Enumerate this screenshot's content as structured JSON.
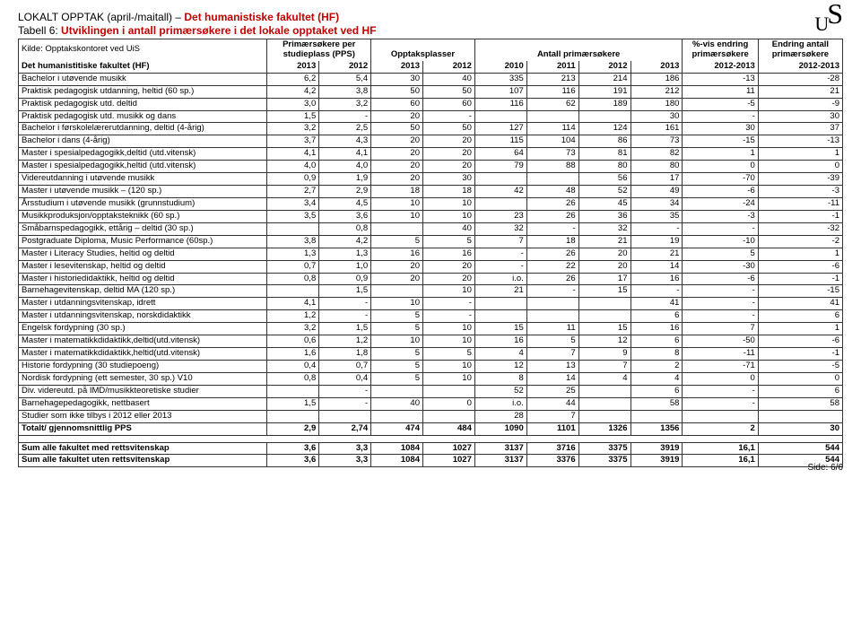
{
  "header": {
    "line1_pre": "LOKALT OPPTAK (april-/maitall) – ",
    "line1_red": "Det humanistiske fakultet (HF)",
    "line2_pre": "Tabell 6: ",
    "line2_red": "Utviklingen i antall primærsøkere i det lokale opptaket ved HF",
    "source": "Kilde: Opptakskontoret ved UiS"
  },
  "columns": {
    "pps": "Primærsøkere per studieplass (PPS)",
    "plasser": "Opptaksplasser",
    "antall": "Antall primærsøkere",
    "pct": "%-vis endring primærsøkere",
    "endring": "Endring antall primærsøkere",
    "fac": "Det humanistitiske fakultet (HF)",
    "y2013": "2013",
    "y2012": "2012",
    "y2011": "2011",
    "y2010": "2010",
    "p1": "2012-2013",
    "p2": "2012-2013"
  },
  "rows": [
    {
      "n": "Bachelor i utøvende musikk",
      "v": [
        "6,2",
        "5,4",
        "30",
        "40",
        "335",
        "213",
        "214",
        "186",
        "-13",
        "-28"
      ]
    },
    {
      "n": "Praktisk pedagogisk utdanning, heltid (60 sp.)",
      "v": [
        "4,2",
        "3,8",
        "50",
        "50",
        "107",
        "116",
        "191",
        "212",
        "11",
        "21"
      ]
    },
    {
      "n": "Praktisk pedagogisk utd. deltid",
      "v": [
        "3,0",
        "3,2",
        "60",
        "60",
        "116",
        "62",
        "189",
        "180",
        "-5",
        "-9"
      ]
    },
    {
      "n": "Praktisk pedagogisk utd. musikk og dans",
      "v": [
        "1,5",
        "-",
        "20",
        "-",
        "",
        "",
        "",
        "30",
        "-",
        "30"
      ]
    },
    {
      "n": "Bachelor i førskolelærerutdanning, deltid (4-årig)",
      "v": [
        "3,2",
        "2,5",
        "50",
        "50",
        "127",
        "114",
        "124",
        "161",
        "30",
        "37"
      ]
    },
    {
      "n": "Bachelor i dans (4-årig)",
      "v": [
        "3,7",
        "4,3",
        "20",
        "20",
        "115",
        "104",
        "86",
        "73",
        "-15",
        "-13"
      ]
    },
    {
      "n": "Master i spesialpedagogikk,deltid (utd.vitensk)",
      "v": [
        "4,1",
        "4,1",
        "20",
        "20",
        "64",
        "73",
        "81",
        "82",
        "1",
        "1"
      ]
    },
    {
      "n": "Master i spesialpedagogikk,heltid (utd.vitensk)",
      "v": [
        "4,0",
        "4,0",
        "20",
        "20",
        "79",
        "88",
        "80",
        "80",
        "0",
        "0"
      ]
    },
    {
      "n": "Videreutdanning i utøvende musikk",
      "v": [
        "0,9",
        "1,9",
        "20",
        "30",
        "",
        "",
        "56",
        "17",
        "-70",
        "-39"
      ]
    },
    {
      "n": "Master i utøvende musikk – (120 sp.)",
      "v": [
        "2,7",
        "2,9",
        "18",
        "18",
        "42",
        "48",
        "52",
        "49",
        "-6",
        "-3"
      ]
    },
    {
      "n": "Årsstudium i utøvende musikk (grunnstudium)",
      "v": [
        "3,4",
        "4,5",
        "10",
        "10",
        "",
        "26",
        "45",
        "34",
        "-24",
        "-11"
      ]
    },
    {
      "n": "Musikkproduksjon/opptaksteknikk (60 sp.)",
      "v": [
        "3,5",
        "3,6",
        "10",
        "10",
        "23",
        "26",
        "36",
        "35",
        "-3",
        "-1"
      ]
    },
    {
      "n": "Småbarnspedagogikk, ettårig – deltid (30 sp.)",
      "v": [
        "",
        "0,8",
        "",
        "40",
        "32",
        "-",
        "32",
        "-",
        "-",
        "-32"
      ]
    },
    {
      "n": "Postgraduate Diploma, Music Performance (60sp.)",
      "v": [
        "3,8",
        "4,2",
        "5",
        "5",
        "7",
        "18",
        "21",
        "19",
        "-10",
        "-2"
      ]
    },
    {
      "n": "Master i Literacy Studies, heltid og deltid",
      "v": [
        "1,3",
        "1,3",
        "16",
        "16",
        "-",
        "26",
        "20",
        "21",
        "5",
        "1"
      ]
    },
    {
      "n": "Master i lesevitenskap, heltid og deltid",
      "v": [
        "0,7",
        "1,0",
        "20",
        "20",
        "-",
        "22",
        "20",
        "14",
        "-30",
        "-6"
      ]
    },
    {
      "n": "Master i historiedidaktikk, heltid og deltid",
      "v": [
        "0,8",
        "0,9",
        "20",
        "20",
        "i.o.",
        "26",
        "17",
        "16",
        "-6",
        "-1"
      ]
    },
    {
      "n": "Barnehagevitenskap, deltid MA (120 sp.)",
      "v": [
        "",
        "1,5",
        "",
        "10",
        "21",
        "-",
        "15",
        "-",
        "-",
        "-15"
      ]
    },
    {
      "n": "Master i utdanningsvitenskap, idrett",
      "v": [
        "4,1",
        "-",
        "10",
        "-",
        "",
        "",
        "",
        "41",
        "-",
        "41"
      ]
    },
    {
      "n": "Master i utdanningsvitenskap, norskdidaktikk",
      "v": [
        "1,2",
        "-",
        "5",
        "-",
        "",
        "",
        "",
        "6",
        "-",
        "6"
      ]
    },
    {
      "n": "Engelsk fordypning (30 sp.)",
      "v": [
        "3,2",
        "1,5",
        "5",
        "10",
        "15",
        "11",
        "15",
        "16",
        "7",
        "1"
      ]
    },
    {
      "n": "Master i matematikkdidaktikk,deltid(utd.vitensk)",
      "v": [
        "0,6",
        "1,2",
        "10",
        "10",
        "16",
        "5",
        "12",
        "6",
        "-50",
        "-6"
      ]
    },
    {
      "n": "Master i matematikkdidaktikk,heltid(utd.vitensk)",
      "v": [
        "1,6",
        "1,8",
        "5",
        "5",
        "4",
        "7",
        "9",
        "8",
        "-11",
        "-1"
      ]
    },
    {
      "n": "Historie fordypning (30 studiepoeng)",
      "v": [
        "0,4",
        "0,7",
        "5",
        "10",
        "12",
        "13",
        "7",
        "2",
        "-71",
        "-5"
      ]
    },
    {
      "n": "Nordisk fordypning (ett semester, 30 sp.) V10",
      "v": [
        "0,8",
        "0,4",
        "5",
        "10",
        "8",
        "14",
        "4",
        "4",
        "0",
        "0"
      ]
    },
    {
      "n": "Div. videreutd. på IMD/musikkteoretiske studier",
      "v": [
        "",
        "-",
        "",
        "",
        "52",
        "25",
        "",
        "6",
        "-",
        "6"
      ]
    },
    {
      "n": "Barnehagepedagogikk, nettbasert",
      "v": [
        "1,5",
        "-",
        "40",
        "0",
        "i.o.",
        "44",
        "",
        "58",
        "-",
        "58"
      ]
    },
    {
      "n": "Studier som ikke tilbys i 2012 eller 2013",
      "v": [
        "",
        "",
        "",
        "",
        "28",
        "7",
        "",
        "",
        "",
        ""
      ]
    }
  ],
  "total": {
    "n": "Totalt/ gjennomsnittlig PPS",
    "v": [
      "2,9",
      "2,74",
      "474",
      "484",
      "1090",
      "1101",
      "1326",
      "1356",
      "2",
      "30"
    ]
  },
  "sum1": {
    "n": "Sum alle fakultet med rettsvitenskap",
    "v": [
      "3,6",
      "3,3",
      "1084",
      "1027",
      "3137",
      "3716",
      "3375",
      "3919",
      "16,1",
      "544"
    ]
  },
  "sum2": {
    "n": "Sum alle fakultet uten rettsvitenskap",
    "v": [
      "3,6",
      "3,3",
      "1084",
      "1027",
      "3137",
      "3376",
      "3375",
      "3919",
      "16,1",
      "544"
    ]
  },
  "footer": "Side: 6/6"
}
